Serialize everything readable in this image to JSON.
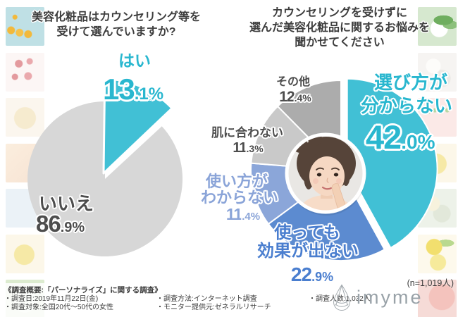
{
  "left_chart": {
    "title_lines": [
      "美容化粧品はカウンセリング等を",
      "受けて選んでいますか?"
    ],
    "labels": {
      "yes": {
        "text": "はい",
        "big": "13",
        "small": ".1%"
      },
      "no": {
        "text": "いいえ",
        "big": "86",
        "small": ".9%"
      }
    }
  },
  "right_chart": {
    "title_lines": [
      "カウンセリングを受けずに",
      "選んだ美容化粧品に関するお悩みを",
      "聞かせてください"
    ],
    "labels": {
      "erabikata": {
        "line1": "選び方が",
        "line2": "分からない",
        "big": "42",
        "small": ".0%"
      },
      "tsukattemo": {
        "line1": "使っても",
        "line2": "効果が出ない",
        "big": "22",
        "small": ".9%"
      },
      "tsukaikata": {
        "line1": "使い方が",
        "line2": "わからない",
        "big": "11",
        "small": ".4%"
      },
      "hada": {
        "text": "肌に合わない",
        "big": "11",
        "small": ".3%"
      },
      "sonota": {
        "text": "その他",
        "big": "12",
        "small": ".4%"
      }
    },
    "center_image": "woman-thinking-photo"
  },
  "chart_data": [
    {
      "type": "pie",
      "title": "美容化粧品はカウンセリング等を受けて選んでいますか?",
      "labels": [
        "はい",
        "いいえ"
      ],
      "values": [
        13.1,
        86.9
      ],
      "colors": [
        "#41c0d5",
        "#d7d7d7"
      ],
      "unit": "%",
      "start_angle": "top",
      "direction": "clockwise",
      "exploded_slice": "はい"
    },
    {
      "type": "pie",
      "title": "カウンセリングを受けずに選んだ美容化粧品に関するお悩みを聞かせてください",
      "labels": [
        "選び方が分からない",
        "使っても効果が出ない",
        "使い方がわからない",
        "肌に合わない",
        "その他"
      ],
      "values": [
        42.0,
        22.9,
        11.4,
        11.3,
        12.4
      ],
      "colors": [
        "#41c0d5",
        "#5c8bd0",
        "#8ba6d9",
        "#c9c9c9",
        "#acacac"
      ],
      "unit": "%",
      "start_angle": "top",
      "direction": "clockwise",
      "exploded_slice": "選び方が分からない",
      "sample_size": "(n=1,019人)"
    }
  ],
  "footer": {
    "heading": "《調査概要:「パーソナライズ」に関する調査》",
    "items": [
      "・調査日:2019年11月22日(金)",
      "・調査方法:インターネット調査",
      "・調査人数:1,032人",
      "・調査対象:全国20代〜50代の女性",
      "・モニター提供元:ゼネラルリサーチ"
    ]
  },
  "n_label": "(n=1,019人)",
  "logo": {
    "text": "imyme",
    "icon": "water-drop-icon"
  },
  "background_tiles": {
    "left": [
      "oil-drops-tile",
      "pink-berries-tile",
      "cream-sphere-tile",
      "peach-tile",
      "pale-blue-tile",
      "yellow-sphere-tile",
      "green-tile"
    ],
    "right": [
      "leaf-tile",
      "white-spheres-tile",
      "pink-sprouts-tile",
      "yellow-sphere-tile",
      "green-spheres-tile",
      "lemon-tile",
      "pink-sphere-tile"
    ]
  }
}
